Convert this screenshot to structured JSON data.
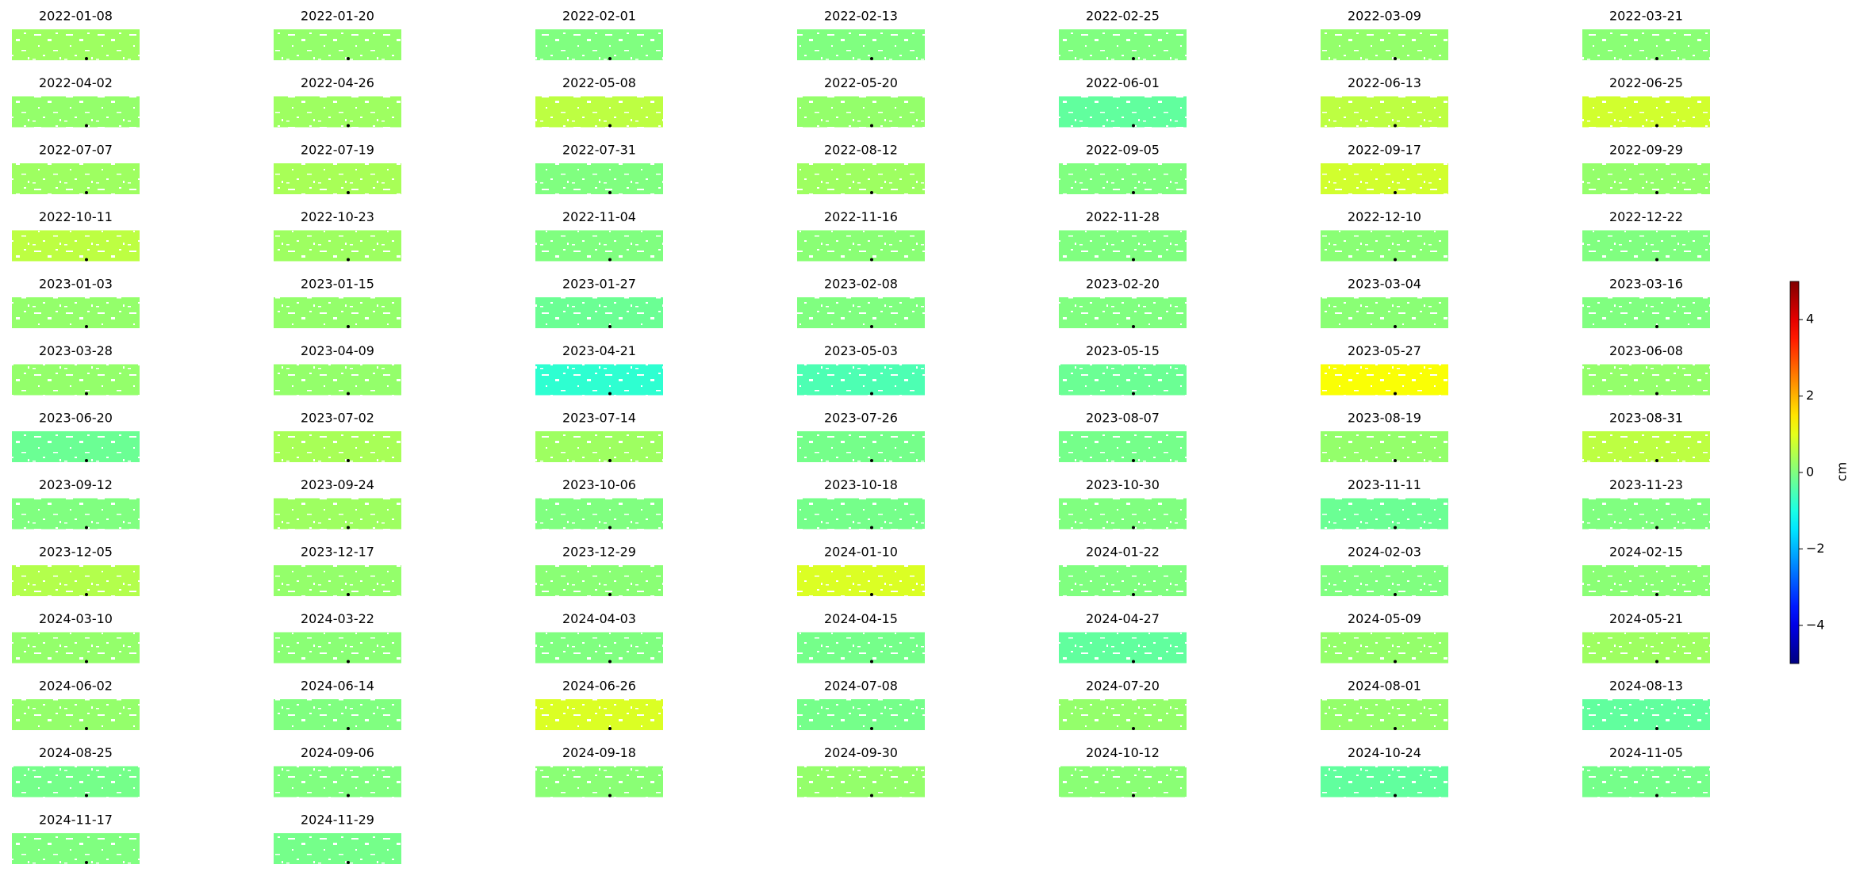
{
  "chart_data": {
    "type": "map-grid",
    "titles": [
      "2022-01-08",
      "2022-01-20",
      "2022-02-01",
      "2022-02-13",
      "2022-02-25",
      "2022-03-09",
      "2022-03-21",
      "2022-04-02",
      "2022-04-26",
      "2022-05-08",
      "2022-05-20",
      "2022-06-01",
      "2022-06-13",
      "2022-06-25",
      "2022-07-07",
      "2022-07-19",
      "2022-07-31",
      "2022-08-12",
      "2022-09-05",
      "2022-09-17",
      "2022-09-29",
      "2022-10-11",
      "2022-10-23",
      "2022-11-04",
      "2022-11-16",
      "2022-11-28",
      "2022-12-10",
      "2022-12-22",
      "2023-01-03",
      "2023-01-15",
      "2023-01-27",
      "2023-02-08",
      "2023-02-20",
      "2023-03-04",
      "2023-03-16",
      "2023-03-28",
      "2023-04-09",
      "2023-04-21",
      "2023-05-03",
      "2023-05-15",
      "2023-05-27",
      "2023-06-08",
      "2023-06-20",
      "2023-07-02",
      "2023-07-14",
      "2023-07-26",
      "2023-08-07",
      "2023-08-19",
      "2023-08-31",
      "2023-09-12",
      "2023-09-24",
      "2023-10-06",
      "2023-10-18",
      "2023-10-30",
      "2023-11-11",
      "2023-11-23",
      "2023-12-05",
      "2023-12-17",
      "2023-12-29",
      "2024-01-10",
      "2024-01-22",
      "2024-02-03",
      "2024-02-15",
      "2024-03-10",
      "2024-03-22",
      "2024-04-03",
      "2024-04-15",
      "2024-04-27",
      "2024-05-09",
      "2024-05-21",
      "2024-06-02",
      "2024-06-14",
      "2024-06-26",
      "2024-07-08",
      "2024-07-20",
      "2024-08-01",
      "2024-08-13",
      "2024-08-25",
      "2024-09-06",
      "2024-09-18",
      "2024-09-30",
      "2024-10-12",
      "2024-10-24",
      "2024-11-05",
      "2024-11-17",
      "2024-11-29"
    ],
    "values": [
      0.3,
      0.2,
      0,
      0,
      0,
      0.2,
      0.1,
      0.2,
      0.3,
      0.6,
      0.2,
      -0.3,
      0.6,
      0.8,
      0.3,
      0.4,
      0,
      0.3,
      0,
      0.8,
      0.2,
      0.6,
      0.3,
      0,
      0.1,
      0,
      0.1,
      0,
      0.2,
      0.2,
      -0.2,
      0,
      0,
      0.1,
      0,
      0.2,
      0.2,
      -0.8,
      -0.5,
      -0.2,
      1.2,
      0.2,
      -0.2,
      0.4,
      0.3,
      -0.1,
      -0.1,
      0.2,
      0.6,
      0,
      0.3,
      0,
      -0.1,
      0,
      -0.2,
      0,
      0.5,
      0.2,
      0.1,
      0.9,
      0,
      0,
      0.1,
      0.2,
      0.1,
      0,
      -0.1,
      -0.3,
      0.2,
      0.3,
      0.2,
      0,
      0.9,
      -0.1,
      0.2,
      0.2,
      -0.3,
      -0.1,
      0,
      0.1,
      0.2,
      0.1,
      -0.3,
      -0.1,
      0,
      -0.1
    ],
    "colormap": "jet",
    "colorbar": {
      "label": "cm",
      "clim": [
        -5,
        5
      ],
      "ticks": [
        {
          "value": -4,
          "label": "−4"
        },
        {
          "value": -2,
          "label": "−2"
        },
        0,
        2,
        4
      ]
    }
  }
}
